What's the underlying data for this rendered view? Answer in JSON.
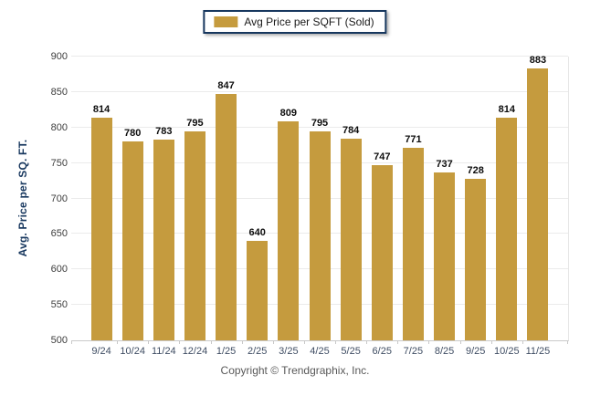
{
  "legend": {
    "label": "Avg Price per SQFT (Sold)"
  },
  "footer": {
    "copyright": "Copyright © Trendgraphix, Inc."
  },
  "colors": {
    "bar": "#C59B3E",
    "legend_border": "#17375E",
    "axis_title": "#17375E",
    "y_tick_label": "#3D3D3D",
    "x_tick_label": "#3F4D63",
    "value_label": "#0D0D0D",
    "grid_line": "#EBEBEB",
    "axis_line": "#C9C9C9",
    "footer_text": "#595959",
    "background": "#FFFFFF"
  },
  "chart_data": {
    "type": "bar",
    "title": "",
    "xlabel": "",
    "ylabel": "Avg. Price per SQ. FT.",
    "categories": [
      "9/24",
      "10/24",
      "11/24",
      "12/24",
      "1/25",
      "2/25",
      "3/25",
      "4/25",
      "5/25",
      "6/25",
      "7/25",
      "8/25",
      "9/25",
      "10/25",
      "11/25"
    ],
    "values": [
      814,
      780,
      783,
      795,
      847,
      640,
      809,
      795,
      784,
      747,
      771,
      737,
      728,
      814,
      883
    ],
    "series_name": "Avg Price per SQFT (Sold)",
    "ylim": [
      500,
      900
    ],
    "yticks": [
      500,
      550,
      600,
      650,
      700,
      750,
      800,
      850,
      900
    ],
    "grid": true,
    "data_labels": true,
    "legend_position": "top-center"
  }
}
